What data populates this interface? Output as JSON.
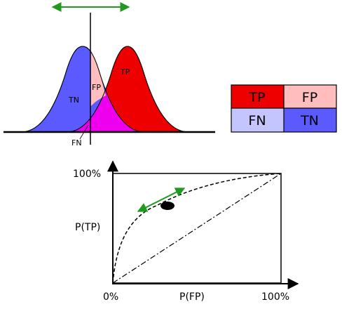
{
  "distribution_plot": {
    "negative_label": "TN",
    "positive_label": "TP",
    "overlap_label": "FP",
    "miss_label": "FN",
    "negative_color": "#5a5aff",
    "positive_color": "#ee0000",
    "false_positive_color": "#ffbdbd",
    "false_negative_color": "#ee00ee",
    "threshold_arrow_color": "#1f9a1f"
  },
  "confusion_matrix": {
    "cells": [
      {
        "label": "TP",
        "color": "#ee0000"
      },
      {
        "label": "FP",
        "color": "#ffbdbd"
      },
      {
        "label": "FN",
        "color": "#c4c4ff"
      },
      {
        "label": "TN",
        "color": "#5a5aff"
      }
    ]
  },
  "roc_plot": {
    "y_max_label": "100%",
    "y_axis_label": "P(TP)",
    "x_min_label": "0%",
    "x_axis_label": "P(FP)",
    "x_max_label": "100%",
    "curve_style": "dashed",
    "diagonal_style": "dash-dot",
    "operating_point_arrow_color": "#1f9a1f"
  }
}
